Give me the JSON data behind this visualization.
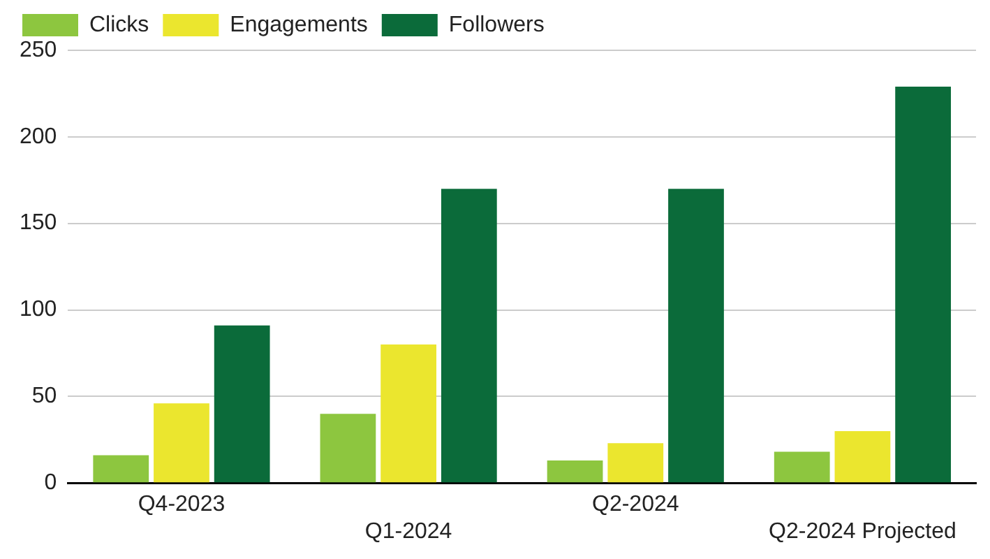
{
  "chart_data": {
    "type": "bar",
    "categories": [
      "Q4-2023",
      "Q1-2024",
      "Q2-2024",
      "Q2-2024 Projected"
    ],
    "series": [
      {
        "name": "Clicks",
        "color": "#8dc63f",
        "values": [
          16,
          40,
          13,
          18
        ]
      },
      {
        "name": "Engagements",
        "color": "#ebe62e",
        "values": [
          46,
          80,
          23,
          30
        ]
      },
      {
        "name": "Followers",
        "color": "#0b6b3a",
        "values": [
          91,
          170,
          170,
          229
        ]
      }
    ],
    "ylim": [
      0,
      250
    ],
    "yticks": [
      0,
      50,
      100,
      150,
      200,
      250
    ],
    "grid": "y",
    "legend": "top left"
  }
}
